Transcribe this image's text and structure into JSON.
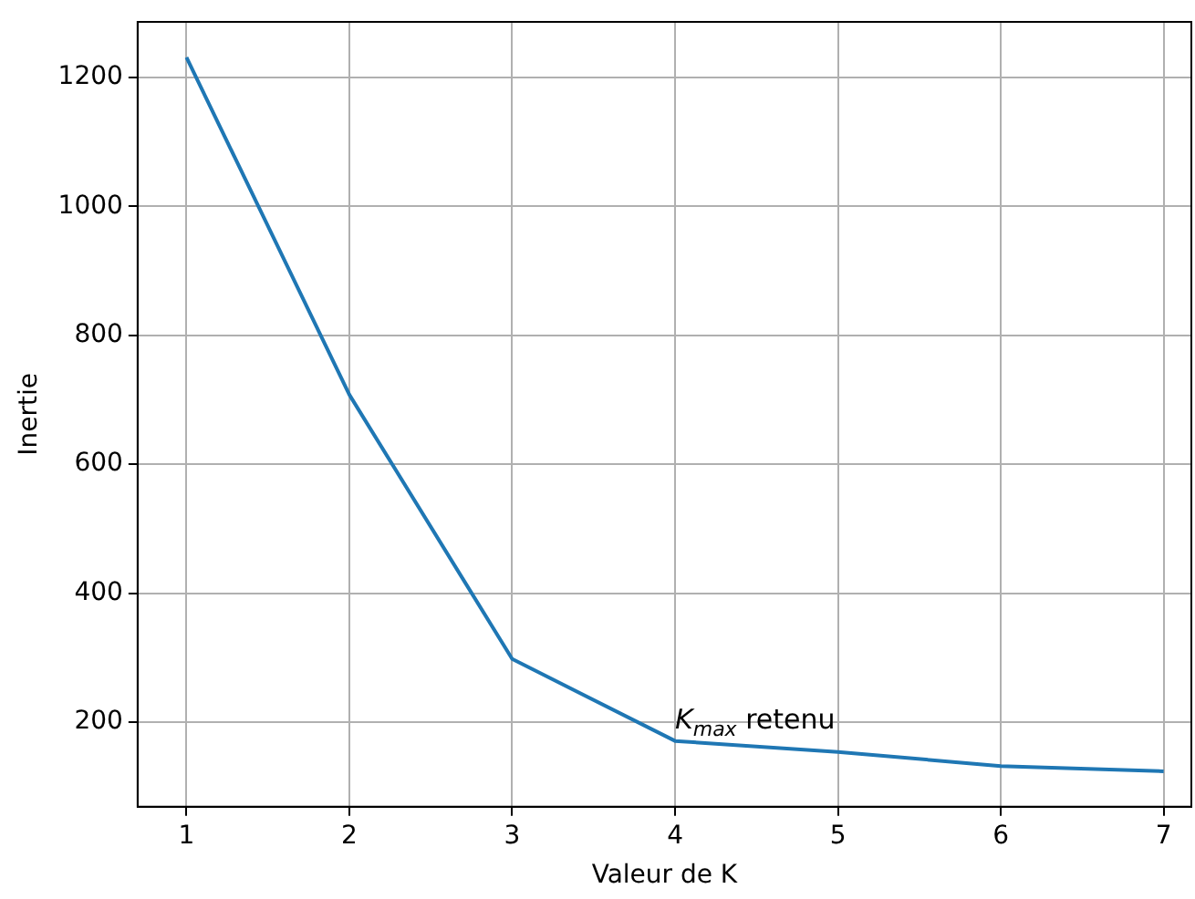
{
  "chart_data": {
    "type": "line",
    "xlabel": "Valeur de K",
    "ylabel": "Inertie",
    "x": [
      1,
      2,
      3,
      4,
      5,
      6,
      7
    ],
    "series": [
      {
        "color": "#1f77b4",
        "values": [
          1231,
          708,
          298,
          171,
          154,
          132,
          124
        ]
      }
    ],
    "xlim": [
      0.7,
      7.17
    ],
    "xticks": [
      1,
      2,
      3,
      4,
      5,
      6,
      7
    ],
    "ylim": [
      69,
      1286
    ],
    "yticks": [
      200,
      400,
      600,
      800,
      1000,
      1200
    ],
    "grid": true,
    "legend": false,
    "marker": "none",
    "line_style": "solid",
    "annotations": [
      {
        "text": "K$_{max}$ retenu",
        "x": 4,
        "y": 190
      }
    ]
  }
}
